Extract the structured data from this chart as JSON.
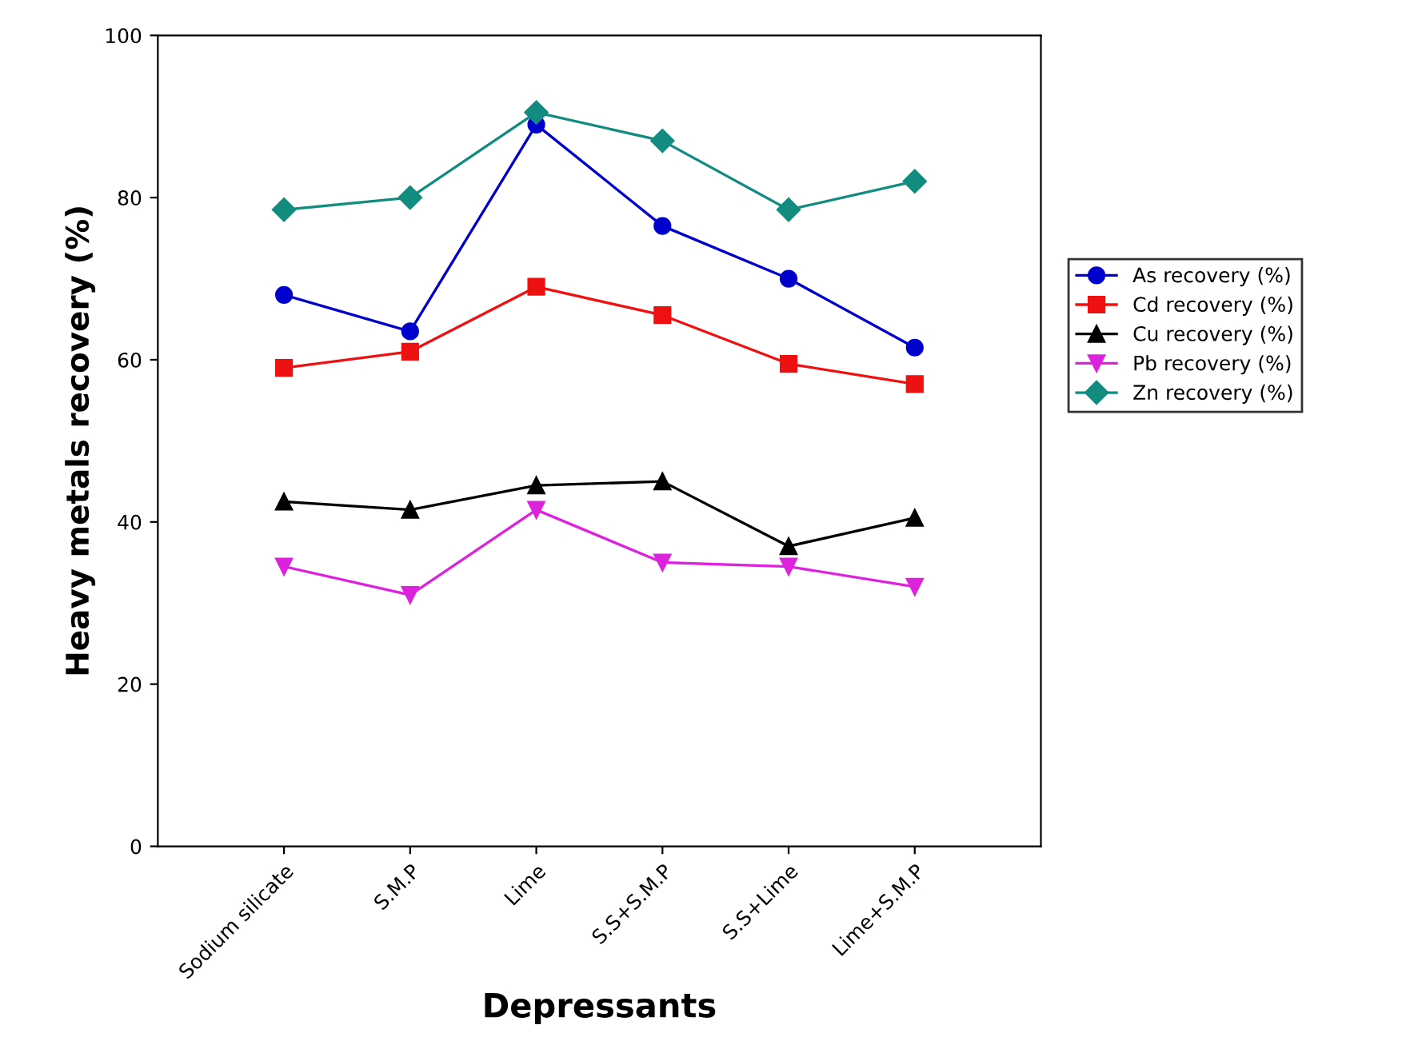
{
  "chart_data": {
    "type": "line",
    "xlabel": "Depressants",
    "ylabel": "Heavy metals recovery (%)",
    "categories": [
      "Sodium silicate",
      "S.M.P",
      "Lime",
      "S.S+S.M.P",
      "S.S+Lime",
      "Lime+S.M.P"
    ],
    "ylim": [
      0,
      100
    ],
    "yticks": [
      0,
      20,
      40,
      60,
      80,
      100
    ],
    "grid": false,
    "legend": "right",
    "line_style": "solid",
    "series": [
      {
        "name": "As recovery (%)",
        "color": "#0000cc",
        "marker": "circle",
        "values": [
          68,
          63.5,
          89,
          76.5,
          70,
          61.5
        ]
      },
      {
        "name": "Cd recovery (%)",
        "color": "#ee1111",
        "marker": "square",
        "values": [
          59,
          61,
          69,
          65.5,
          59.5,
          57
        ]
      },
      {
        "name": "Cu recovery (%)",
        "color": "#000000",
        "marker": "triangle",
        "values": [
          42.5,
          41.5,
          44.5,
          45,
          37,
          40.5
        ]
      },
      {
        "name": "Pb recovery (%)",
        "color": "#dd22dd",
        "marker": "triangle_down",
        "values": [
          34.5,
          31,
          41.5,
          35,
          34.5,
          32
        ]
      },
      {
        "name": "Zn recovery (%)",
        "color": "#138c80",
        "marker": "diamond",
        "values": [
          78.5,
          80,
          90.5,
          87,
          78.5,
          82
        ]
      }
    ]
  }
}
